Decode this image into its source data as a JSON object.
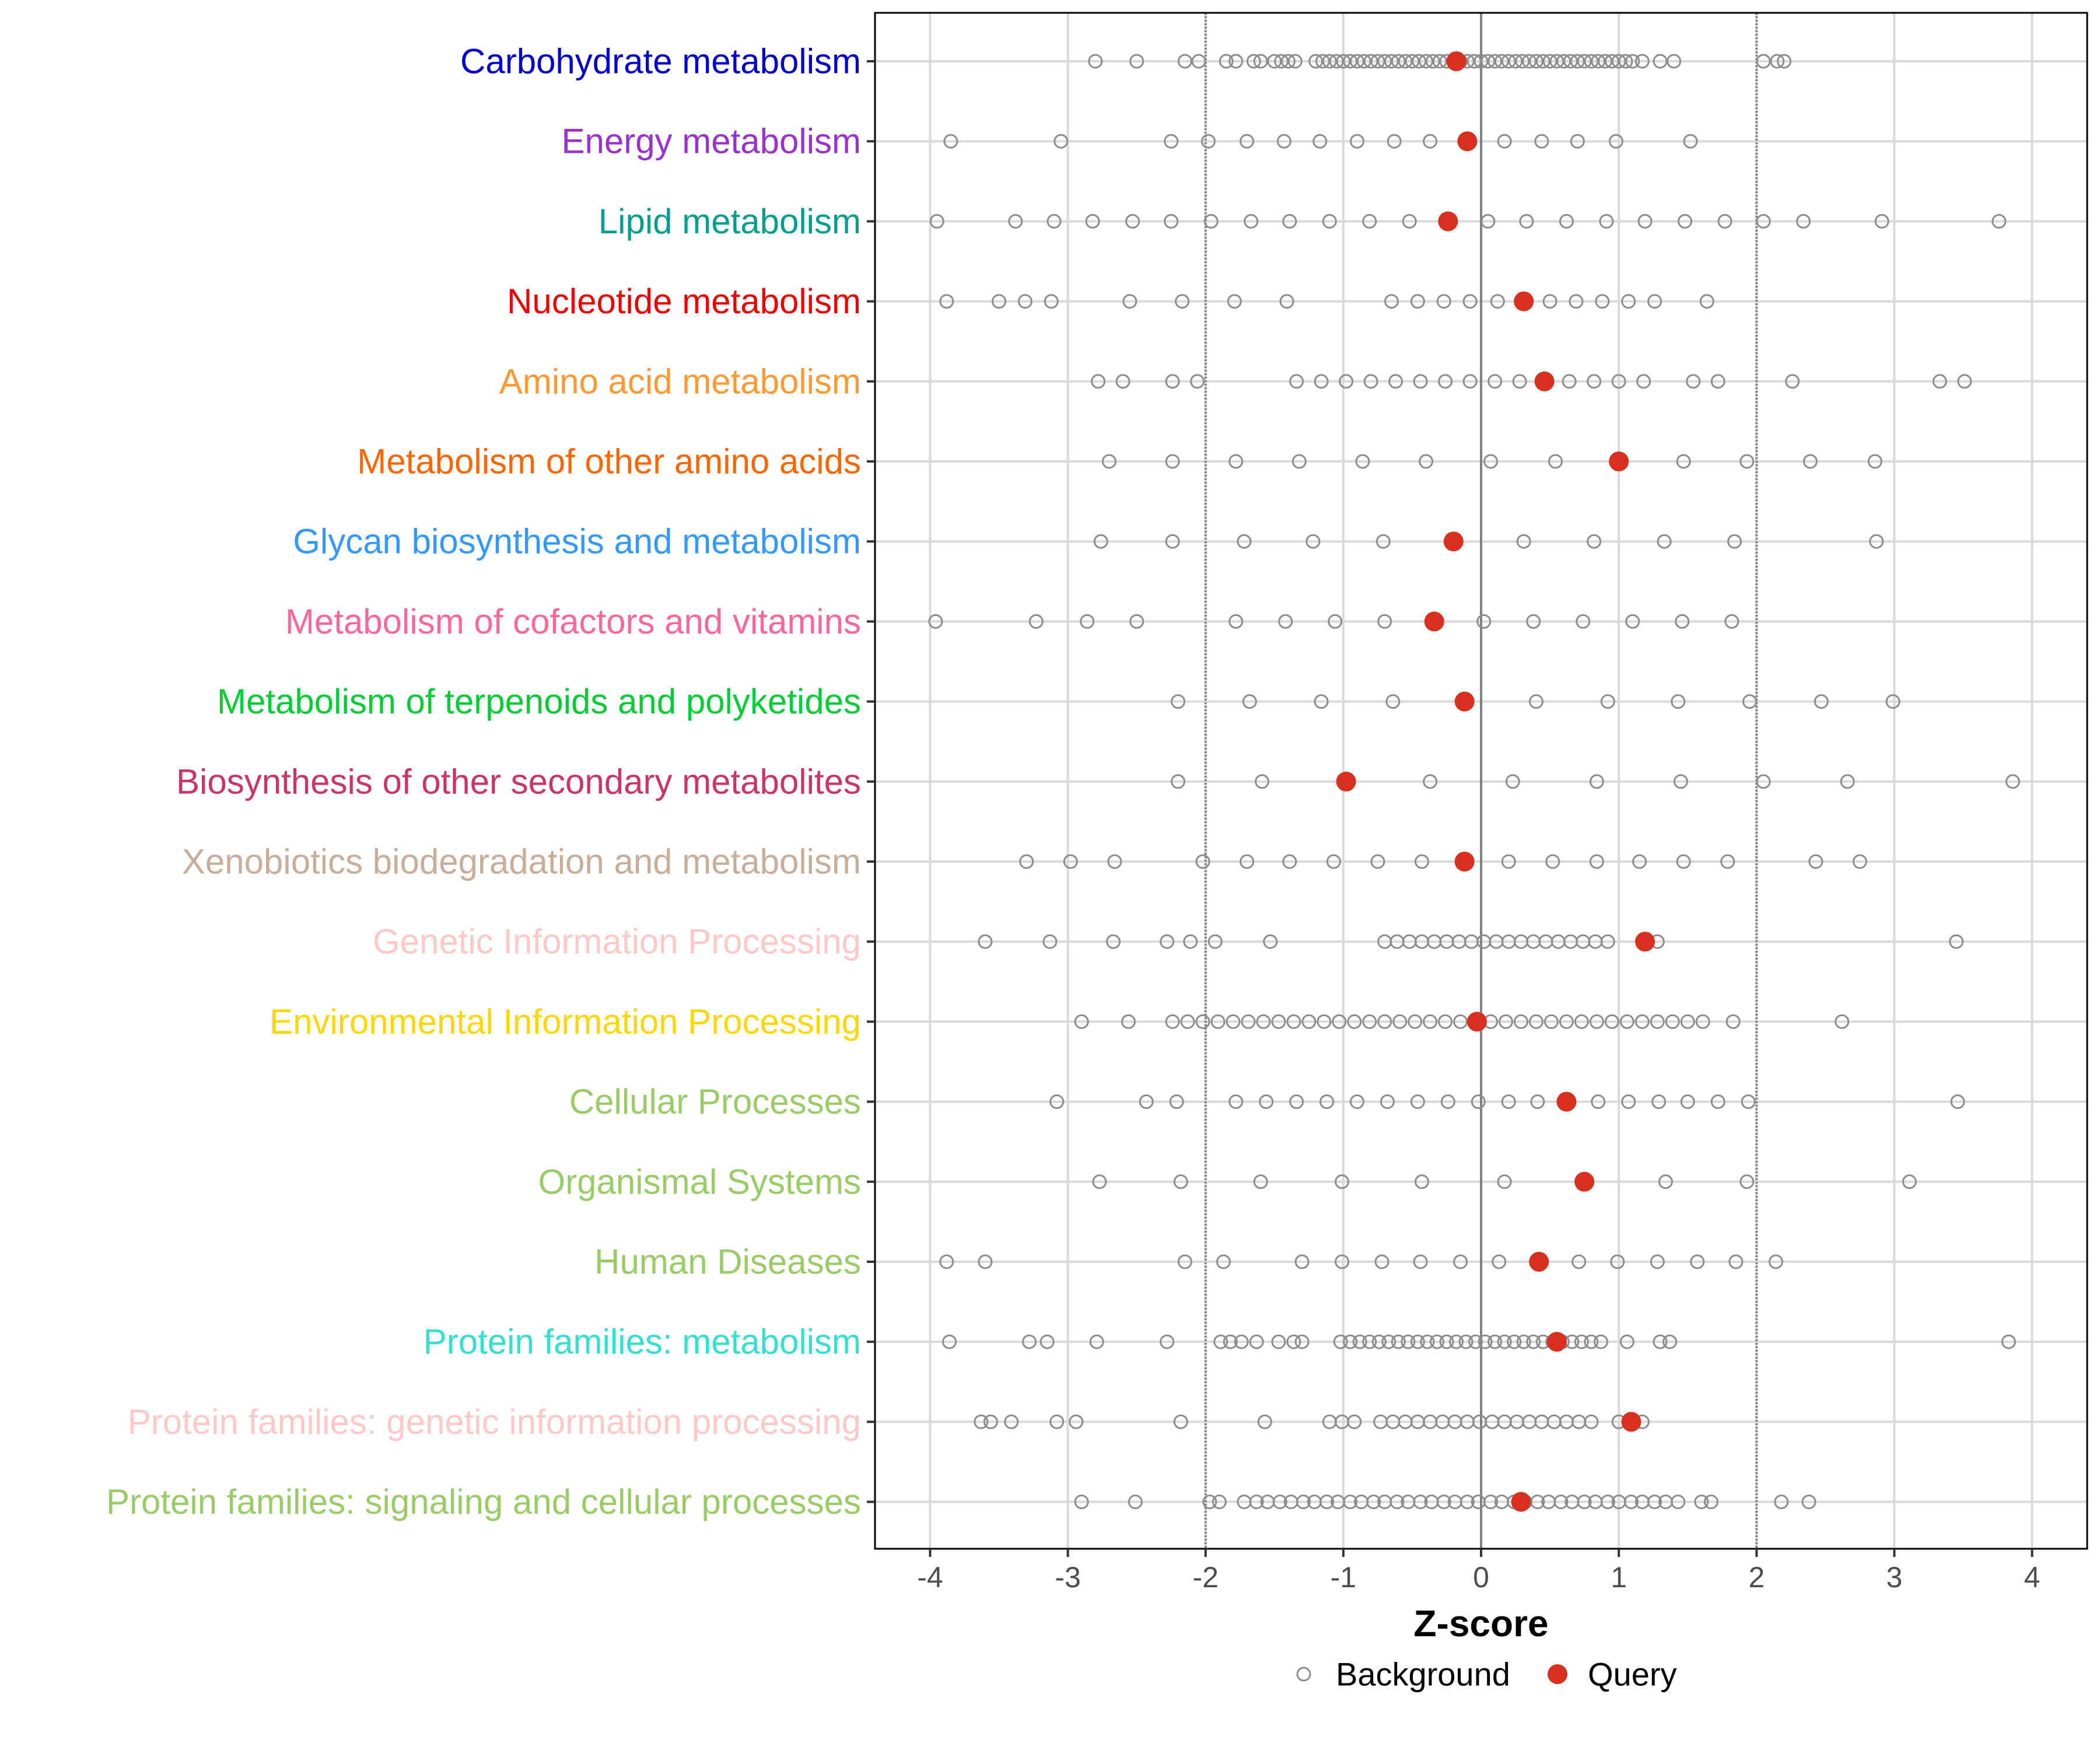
{
  "chart_data": {
    "type": "scatter",
    "xlabel": "Z-score",
    "xlim": [
      -4.4,
      4.4
    ],
    "xticks": [
      -4,
      -3,
      -2,
      -1,
      0,
      1,
      2,
      3,
      4
    ],
    "xtick_labels": [
      "-4",
      "-3",
      "-2",
      "-1",
      "0",
      "1",
      "2",
      "3",
      "4"
    ],
    "reference_lines": {
      "zero": 0,
      "dotted": [
        -2,
        2
      ]
    },
    "grid": true,
    "legend": {
      "position": "bottom",
      "items": [
        {
          "label": "Background",
          "marker": "open-circle",
          "color": "#8c8c8c"
        },
        {
          "label": "Query",
          "marker": "filled-circle",
          "color": "#d7301f"
        }
      ]
    },
    "categories": [
      {
        "label": "Carbohydrate metabolism",
        "color": "#0000cc",
        "query": -0.18,
        "background": [
          -2.8,
          -2.5,
          -2.15,
          -2.05,
          -1.85,
          -1.78,
          -1.65,
          -1.6,
          -1.5,
          -1.45,
          -1.4,
          -1.35,
          -1.2,
          -1.15,
          -1.1,
          -1.05,
          -1.0,
          -0.95,
          -0.9,
          -0.85,
          -0.8,
          -0.75,
          -0.7,
          -0.65,
          -0.6,
          -0.55,
          -0.5,
          -0.45,
          -0.4,
          -0.35,
          -0.3,
          -0.25,
          -0.2,
          -0.15,
          -0.1,
          -0.05,
          0.0,
          0.05,
          0.1,
          0.15,
          0.2,
          0.25,
          0.3,
          0.35,
          0.4,
          0.45,
          0.5,
          0.55,
          0.6,
          0.65,
          0.7,
          0.75,
          0.8,
          0.85,
          0.9,
          0.95,
          1.0,
          1.05,
          1.1,
          1.17,
          1.3,
          1.4,
          2.05,
          2.15,
          2.2
        ]
      },
      {
        "label": "Energy metabolism",
        "color": "#9932cc",
        "query": -0.1,
        "background": [
          -3.85,
          -3.05,
          -2.25,
          -1.98,
          -1.7,
          -1.43,
          -1.17,
          -0.9,
          -0.63,
          -0.37,
          -0.1,
          0.17,
          0.44,
          0.7,
          0.98,
          1.52
        ]
      },
      {
        "label": "Lipid metabolism",
        "color": "#009e8e",
        "query": -0.24,
        "background": [
          -3.95,
          -3.38,
          -3.1,
          -2.82,
          -2.53,
          -2.25,
          -1.96,
          -1.67,
          -1.39,
          -1.1,
          -0.81,
          -0.52,
          -0.24,
          0.05,
          0.33,
          0.62,
          0.91,
          1.19,
          1.48,
          1.77,
          2.05,
          2.34,
          2.91,
          3.76
        ]
      },
      {
        "label": "Nucleotide metabolism",
        "color": "#ee0000",
        "query": 0.31,
        "background": [
          -3.88,
          -3.5,
          -3.31,
          -3.12,
          -2.55,
          -2.17,
          -1.79,
          -1.41,
          -0.65,
          -0.46,
          -0.27,
          -0.08,
          0.12,
          0.31,
          0.5,
          0.69,
          0.88,
          1.07,
          1.26,
          1.64
        ]
      },
      {
        "label": "Amino acid metabolism",
        "color": "#ff9933",
        "query": 0.46,
        "background": [
          -2.78,
          -2.6,
          -2.24,
          -2.06,
          -1.34,
          -1.16,
          -0.98,
          -0.8,
          -0.62,
          -0.44,
          -0.26,
          -0.08,
          0.1,
          0.28,
          0.46,
          0.64,
          0.82,
          1.0,
          1.18,
          1.54,
          1.72,
          2.26,
          3.33,
          3.51
        ]
      },
      {
        "label": "Metabolism of other amino acids",
        "color": "#ff6600",
        "query": 1.0,
        "background": [
          -2.7,
          -2.24,
          -1.78,
          -1.32,
          -0.86,
          -0.4,
          0.07,
          0.54,
          1.0,
          1.47,
          1.93,
          2.39,
          2.86
        ]
      },
      {
        "label": "Glycan biosynthesis and metabolism",
        "color": "#3399ff",
        "query": -0.2,
        "background": [
          -2.76,
          -2.24,
          -1.72,
          -1.22,
          -0.71,
          -0.2,
          0.31,
          0.82,
          1.33,
          1.84,
          2.87
        ]
      },
      {
        "label": "Metabolism of cofactors and vitamins",
        "color": "#ff6699",
        "query": -0.34,
        "background": [
          -3.96,
          -3.23,
          -2.86,
          -2.5,
          -1.78,
          -1.42,
          -1.06,
          -0.7,
          -0.34,
          0.02,
          0.38,
          0.74,
          1.1,
          1.46,
          1.82
        ]
      },
      {
        "label": "Metabolism of terpenoids and polyketides",
        "color": "#00cc33",
        "query": -0.12,
        "background": [
          -2.2,
          -1.68,
          -1.16,
          -0.64,
          -0.12,
          0.4,
          0.92,
          1.43,
          1.95,
          2.47,
          2.99
        ]
      },
      {
        "label": "Biosynthesis of other secondary metabolites",
        "color": "#cc3366",
        "query": -0.98,
        "background": [
          -2.2,
          -1.59,
          -0.98,
          -0.37,
          0.23,
          0.84,
          1.45,
          2.05,
          2.66,
          3.86
        ]
      },
      {
        "label": "Xenobiotics biodegradation and metabolism",
        "color": "#c8ad9a",
        "query": -0.12,
        "background": [
          -3.3,
          -2.98,
          -2.66,
          -2.02,
          -1.7,
          -1.39,
          -1.07,
          -0.75,
          -0.43,
          -0.12,
          0.2,
          0.52,
          0.84,
          1.15,
          1.47,
          1.79,
          2.43,
          2.75
        ]
      },
      {
        "label": "Genetic Information Processing",
        "color": "#ffc8c8",
        "query": 1.19,
        "background": [
          -3.6,
          -3.13,
          -2.67,
          -2.28,
          -2.11,
          -1.93,
          -1.53,
          -0.7,
          -0.61,
          -0.52,
          -0.43,
          -0.34,
          -0.25,
          -0.16,
          -0.07,
          0.02,
          0.11,
          0.2,
          0.29,
          0.38,
          0.47,
          0.56,
          0.65,
          0.74,
          0.83,
          0.92,
          1.28,
          3.45
        ]
      },
      {
        "label": "Environmental Information Processing",
        "color": "#ffd700",
        "query": -0.03,
        "background": [
          -2.9,
          -2.56,
          -2.24,
          -2.13,
          -2.02,
          -1.91,
          -1.8,
          -1.69,
          -1.58,
          -1.47,
          -1.36,
          -1.25,
          -1.14,
          -1.03,
          -0.92,
          -0.81,
          -0.7,
          -0.59,
          -0.48,
          -0.37,
          -0.26,
          -0.15,
          -0.04,
          0.07,
          0.18,
          0.29,
          0.4,
          0.51,
          0.62,
          0.73,
          0.84,
          0.95,
          1.06,
          1.17,
          1.28,
          1.39,
          1.5,
          1.61,
          1.83,
          2.62
        ]
      },
      {
        "label": "Cellular Processes",
        "color": "#99cc66",
        "query": 0.62,
        "background": [
          -3.08,
          -2.43,
          -2.21,
          -1.78,
          -1.56,
          -1.34,
          -1.12,
          -0.9,
          -0.68,
          -0.46,
          -0.24,
          -0.02,
          0.2,
          0.41,
          0.63,
          0.85,
          1.07,
          1.29,
          1.5,
          1.72,
          1.94,
          3.46
        ]
      },
      {
        "label": "Organismal Systems",
        "color": "#99cc66",
        "query": 0.75,
        "background": [
          -2.77,
          -2.18,
          -1.6,
          -1.01,
          -0.43,
          0.17,
          0.75,
          1.34,
          1.93,
          3.11
        ]
      },
      {
        "label": "Human Diseases",
        "color": "#99cc66",
        "query": 0.42,
        "background": [
          -3.88,
          -3.6,
          -2.15,
          -1.87,
          -1.3,
          -1.01,
          -0.72,
          -0.44,
          -0.15,
          0.13,
          0.42,
          0.71,
          0.99,
          1.28,
          1.57,
          1.85,
          2.14
        ]
      },
      {
        "label": "Protein families: metabolism",
        "color": "#33e0d0",
        "query": 0.55,
        "background": [
          -3.86,
          -3.28,
          -3.15,
          -2.79,
          -2.28,
          -1.89,
          -1.82,
          -1.74,
          -1.63,
          -1.47,
          -1.36,
          -1.3,
          -1.02,
          -0.95,
          -0.88,
          -0.81,
          -0.74,
          -0.67,
          -0.6,
          -0.53,
          -0.46,
          -0.39,
          -0.32,
          -0.25,
          -0.18,
          -0.11,
          -0.04,
          0.03,
          0.1,
          0.17,
          0.24,
          0.31,
          0.38,
          0.45,
          0.52,
          0.59,
          0.66,
          0.73,
          0.8,
          0.87,
          1.06,
          1.3,
          1.37,
          3.83
        ]
      },
      {
        "label": "Protein families: genetic information processing",
        "color": "#ffc8c8",
        "query": 1.09,
        "background": [
          -3.63,
          -3.56,
          -3.41,
          -3.08,
          -2.94,
          -2.18,
          -1.57,
          -1.1,
          -1.01,
          -0.92,
          -0.73,
          -0.64,
          -0.55,
          -0.46,
          -0.37,
          -0.28,
          -0.19,
          -0.1,
          -0.01,
          0.08,
          0.17,
          0.26,
          0.35,
          0.44,
          0.53,
          0.62,
          0.71,
          0.8,
          1.0,
          1.17
        ]
      },
      {
        "label": "Protein families: signaling and cellular processes",
        "color": "#99cc66",
        "query": 0.29,
        "background": [
          -2.9,
          -2.51,
          -1.97,
          -1.9,
          -1.72,
          -1.63,
          -1.55,
          -1.46,
          -1.38,
          -1.29,
          -1.21,
          -1.12,
          -1.04,
          -0.95,
          -0.87,
          -0.78,
          -0.7,
          -0.61,
          -0.53,
          -0.44,
          -0.36,
          -0.27,
          -0.19,
          -0.1,
          -0.02,
          0.07,
          0.15,
          0.24,
          0.32,
          0.41,
          0.49,
          0.58,
          0.66,
          0.75,
          0.83,
          0.92,
          1.0,
          1.09,
          1.17,
          1.26,
          1.34,
          1.43,
          1.6,
          1.67,
          2.18,
          2.38
        ]
      }
    ]
  }
}
